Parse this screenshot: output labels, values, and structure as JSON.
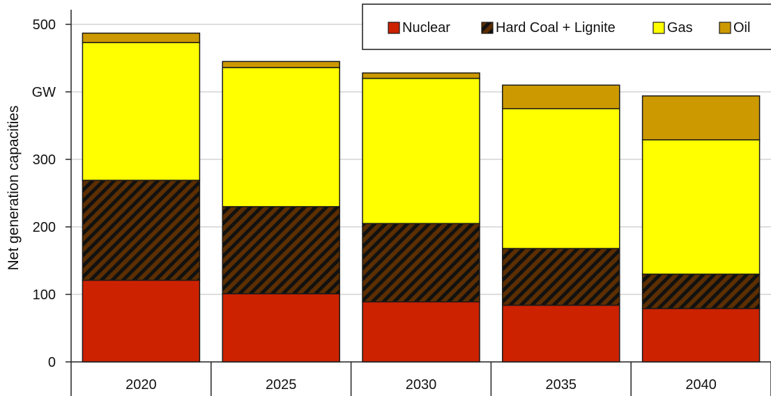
{
  "chart_data": {
    "type": "bar",
    "stacked": true,
    "categories": [
      "2020",
      "2025",
      "2030",
      "2035",
      "2040"
    ],
    "series": [
      {
        "name": "Nuclear",
        "values": [
          121,
          101,
          89,
          84,
          79
        ],
        "color": "#cc2200",
        "pattern": "solid"
      },
      {
        "name": "Hard Coal + Lignite",
        "values": [
          148,
          129,
          116,
          84,
          51
        ],
        "color": "#5c2e00",
        "pattern": "diagonal-stripes"
      },
      {
        "name": "Gas",
        "values": [
          204,
          206,
          215,
          207,
          199
        ],
        "color": "#ffff00",
        "pattern": "solid"
      },
      {
        "name": "Oil",
        "values": [
          14,
          9,
          8,
          35,
          65
        ],
        "color": "#cc9900",
        "pattern": "solid"
      }
    ],
    "yticks": [
      "0",
      "100",
      "200",
      "300",
      "GW",
      "500"
    ],
    "ylabel": "Net generation capacities",
    "ylim": [
      0,
      500
    ],
    "grid": true,
    "legend_position": "top-right"
  }
}
